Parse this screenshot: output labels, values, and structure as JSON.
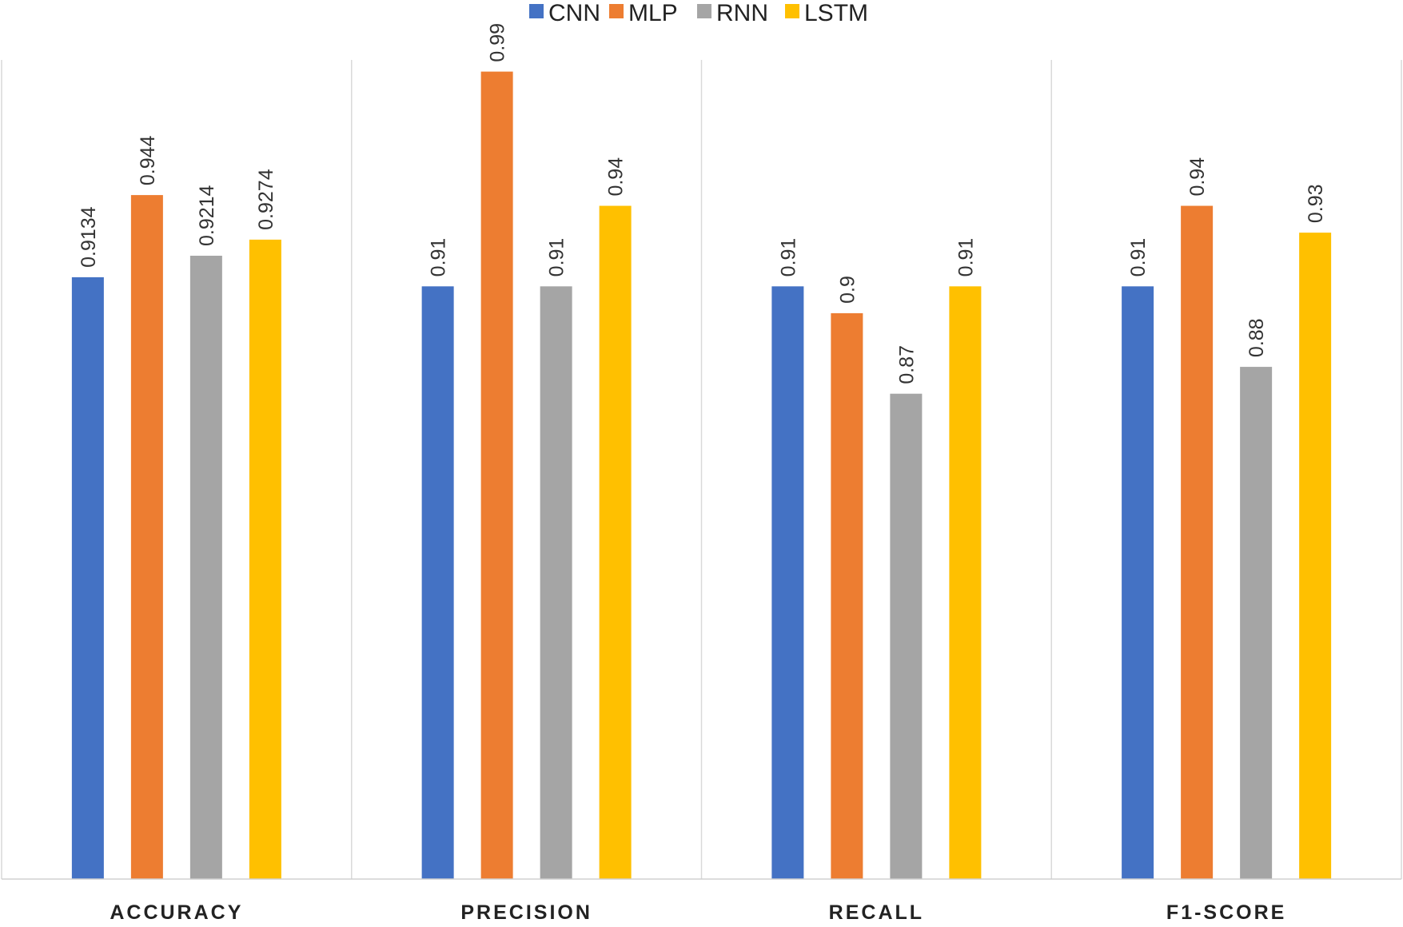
{
  "chart_data": {
    "type": "bar",
    "title": "",
    "xlabel": "",
    "ylabel": "",
    "categories": [
      "ACCURACY",
      "PRECISION",
      "RECALL",
      "F1-SCORE"
    ],
    "series": [
      {
        "name": "CNN",
        "color": "#4472C4",
        "values": [
          0.9134,
          0.91,
          0.91,
          0.91
        ]
      },
      {
        "name": "MLP",
        "color": "#ED7D31",
        "values": [
          0.944,
          0.99,
          0.9,
          0.94
        ]
      },
      {
        "name": "RNN",
        "color": "#A5A5A5",
        "values": [
          0.9214,
          0.91,
          0.87,
          0.88
        ]
      },
      {
        "name": "LSTM",
        "color": "#FFC000",
        "values": [
          0.9274,
          0.94,
          0.91,
          0.93
        ]
      }
    ],
    "data_labels": [
      [
        "0.9134",
        "0.91",
        "0.91",
        "0.91"
      ],
      [
        "0.944",
        "0.99",
        "0.9",
        "0.94"
      ],
      [
        "0.9214",
        "0.91",
        "0.87",
        "0.88"
      ],
      [
        "0.9274",
        "0.94",
        "0.91",
        "0.93"
      ]
    ],
    "ylim": [
      0.6892,
      1.0
    ],
    "grid": false,
    "legend_position": "top-center",
    "category_separators": true
  }
}
